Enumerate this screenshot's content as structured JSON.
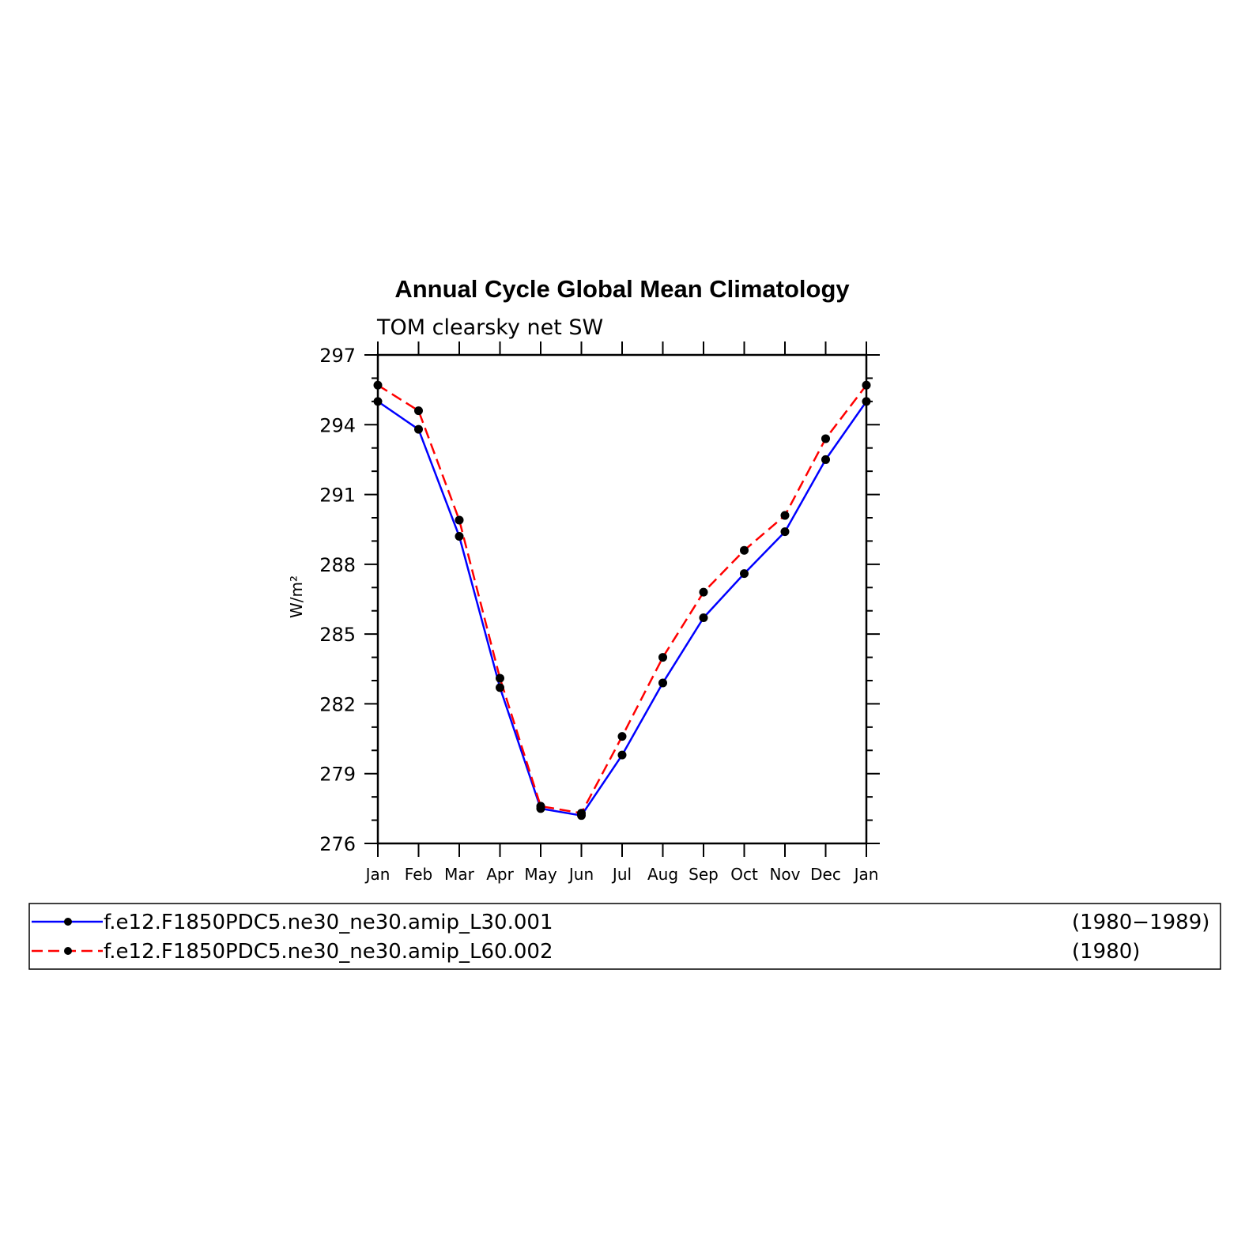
{
  "chart_data": {
    "type": "line",
    "title": "Annual Cycle Global Mean Climatology",
    "subtitle": "TOM clearsky net SW",
    "ylabel": "W/m²",
    "xlabel": "",
    "categories": [
      "Jan",
      "Feb",
      "Mar",
      "Apr",
      "May",
      "Jun",
      "Jul",
      "Aug",
      "Sep",
      "Oct",
      "Nov",
      "Dec",
      "Jan"
    ],
    "ylim": [
      276,
      297
    ],
    "yticks": [
      276,
      279,
      282,
      285,
      288,
      291,
      294,
      297
    ],
    "grid": false,
    "legend_position": "bottom",
    "series": [
      {
        "name": "f.e12.F1850PDC5.ne30_ne30.amip_L30.001",
        "period": "(1980−1989)",
        "color": "#0000ff",
        "dash": "solid",
        "values": [
          295.0,
          293.8,
          289.2,
          282.7,
          277.5,
          277.2,
          279.8,
          282.9,
          285.7,
          287.6,
          289.4,
          292.5,
          295.0
        ]
      },
      {
        "name": "f.e12.F1850PDC5.ne30_ne30.amip_L60.002",
        "period": "(1980)",
        "color": "#ff0000",
        "dash": "dashed",
        "values": [
          295.7,
          294.6,
          289.9,
          283.1,
          277.6,
          277.3,
          280.6,
          284.0,
          286.8,
          288.6,
          290.1,
          293.4,
          295.7
        ]
      }
    ]
  }
}
